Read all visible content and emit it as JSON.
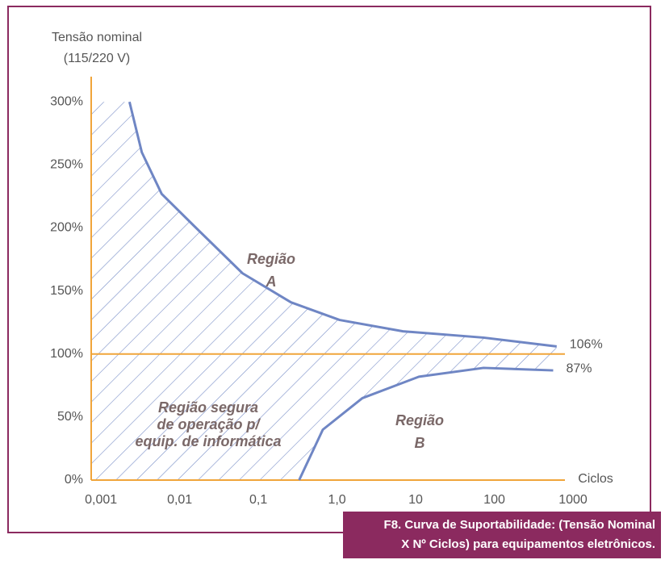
{
  "chart_data": {
    "type": "curves",
    "y_label": [
      "Tensão nominal",
      "(115/220 V)"
    ],
    "x_label": "Ciclos",
    "xscale": "log",
    "xlim": [
      0.00075,
      1000
    ],
    "xticks": [
      {
        "value": 0.001,
        "label": "0,001"
      },
      {
        "value": 0.01,
        "label": "0,01"
      },
      {
        "value": 0.1,
        "label": "0,1"
      },
      {
        "value": 1,
        "label": "1,0"
      },
      10,
      100,
      1000
    ],
    "ylim": [
      0,
      320
    ],
    "yticks": [
      {
        "value": 0,
        "label": "0%"
      },
      {
        "value": 50,
        "label": "50%"
      },
      {
        "value": 100,
        "label": "100%"
      },
      {
        "value": 150,
        "label": "150%"
      },
      {
        "value": 200,
        "label": "200%"
      },
      {
        "value": 250,
        "label": "250%"
      },
      {
        "value": 300,
        "label": "300%"
      }
    ],
    "reference_line": 100,
    "reference_color": "#f0a53a",
    "axis_color": "#f0a53a",
    "hatch_color": "#7a8fc8",
    "series": [
      {
        "color": "#6f86c4",
        "x": [
          0.0023,
          0.0033,
          0.0059,
          0.015,
          0.063,
          0.26,
          1.08,
          6.9,
          73,
          620
        ],
        "values": [
          300,
          260,
          227,
          202,
          164,
          141,
          127,
          118,
          113,
          106
        ],
        "value_labels": [
          null,
          null,
          null,
          null,
          null,
          null,
          null,
          null,
          null,
          "106%"
        ]
      },
      {
        "color": "#6f86c4",
        "x": [
          0.33,
          0.66,
          2.1,
          11,
          73,
          560
        ],
        "values": [
          0,
          40,
          65,
          82,
          89,
          87
        ],
        "value_labels": [
          null,
          null,
          null,
          null,
          null,
          "87%"
        ]
      }
    ],
    "annotations": [
      {
        "lines": [
          "Região",
          "A"
        ]
      },
      {
        "lines": [
          "Região",
          "B"
        ]
      },
      {
        "lines": [
          "Região segura",
          "de operação p/",
          "equip. de informática"
        ]
      }
    ],
    "caption": [
      "F8. Curva de Suportabilidade: (Tensão Nominal",
      "X Nº Ciclos) para equipamentos eletrônicos."
    ]
  }
}
